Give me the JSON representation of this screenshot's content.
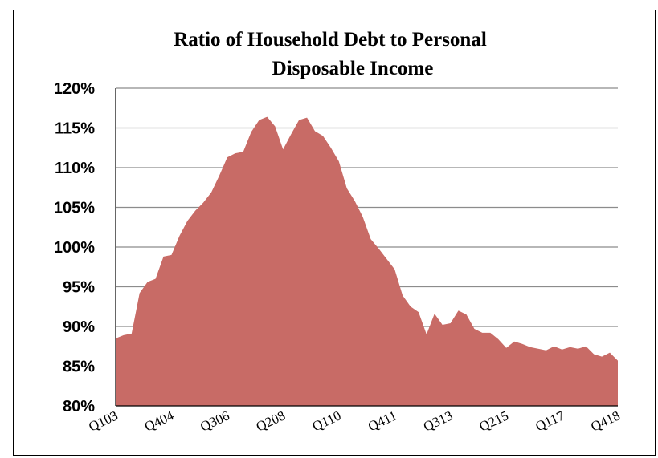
{
  "chart_data": {
    "type": "area",
    "title_lines": [
      "Ratio of Household Debt to Personal",
      "Disposable Income"
    ],
    "xlabel": "",
    "ylabel": "",
    "ylim": [
      80,
      120
    ],
    "grid": true,
    "legend": "none",
    "colors": {
      "fill": "#c86b66",
      "grid": "#8c8c8c",
      "axis": "#000000"
    },
    "yticks": [
      80,
      85,
      90,
      95,
      100,
      105,
      110,
      115,
      120
    ],
    "ytick_labels": [
      "80%",
      "85%",
      "90%",
      "95%",
      "100%",
      "105%",
      "110%",
      "115%",
      "120%"
    ],
    "x_tick_labels": [
      {
        "label": "Q103",
        "index": 0
      },
      {
        "label": "Q404",
        "index": 7
      },
      {
        "label": "Q306",
        "index": 14
      },
      {
        "label": "Q208",
        "index": 21
      },
      {
        "label": "Q110",
        "index": 28
      },
      {
        "label": "Q411",
        "index": 35
      },
      {
        "label": "Q313",
        "index": 42
      },
      {
        "label": "Q215",
        "index": 49
      },
      {
        "label": "Q117",
        "index": 56
      },
      {
        "label": "Q418",
        "index": 63
      }
    ],
    "series": [
      {
        "values": [
          88.5,
          88.9,
          89.1,
          94.2,
          95.6,
          96.0,
          98.8,
          99.0,
          101.4,
          103.3,
          104.6,
          105.6,
          106.9,
          109.0,
          111.3,
          111.8,
          112.0,
          114.5,
          116.0,
          116.4,
          115.2,
          112.3,
          114.2,
          116.0,
          116.3,
          114.6,
          114.0,
          112.5,
          110.8,
          107.4,
          105.8,
          103.8,
          101.0,
          99.8,
          98.5,
          97.2,
          93.9,
          92.5,
          91.8,
          89.0,
          91.6,
          90.2,
          90.4,
          92.0,
          91.5,
          89.7,
          89.2,
          89.2,
          88.4,
          87.3,
          88.1,
          87.8,
          87.4,
          87.2,
          87.0,
          87.5,
          87.1,
          87.4,
          87.2,
          87.5,
          86.5,
          86.2,
          86.7,
          85.7
        ]
      }
    ]
  }
}
